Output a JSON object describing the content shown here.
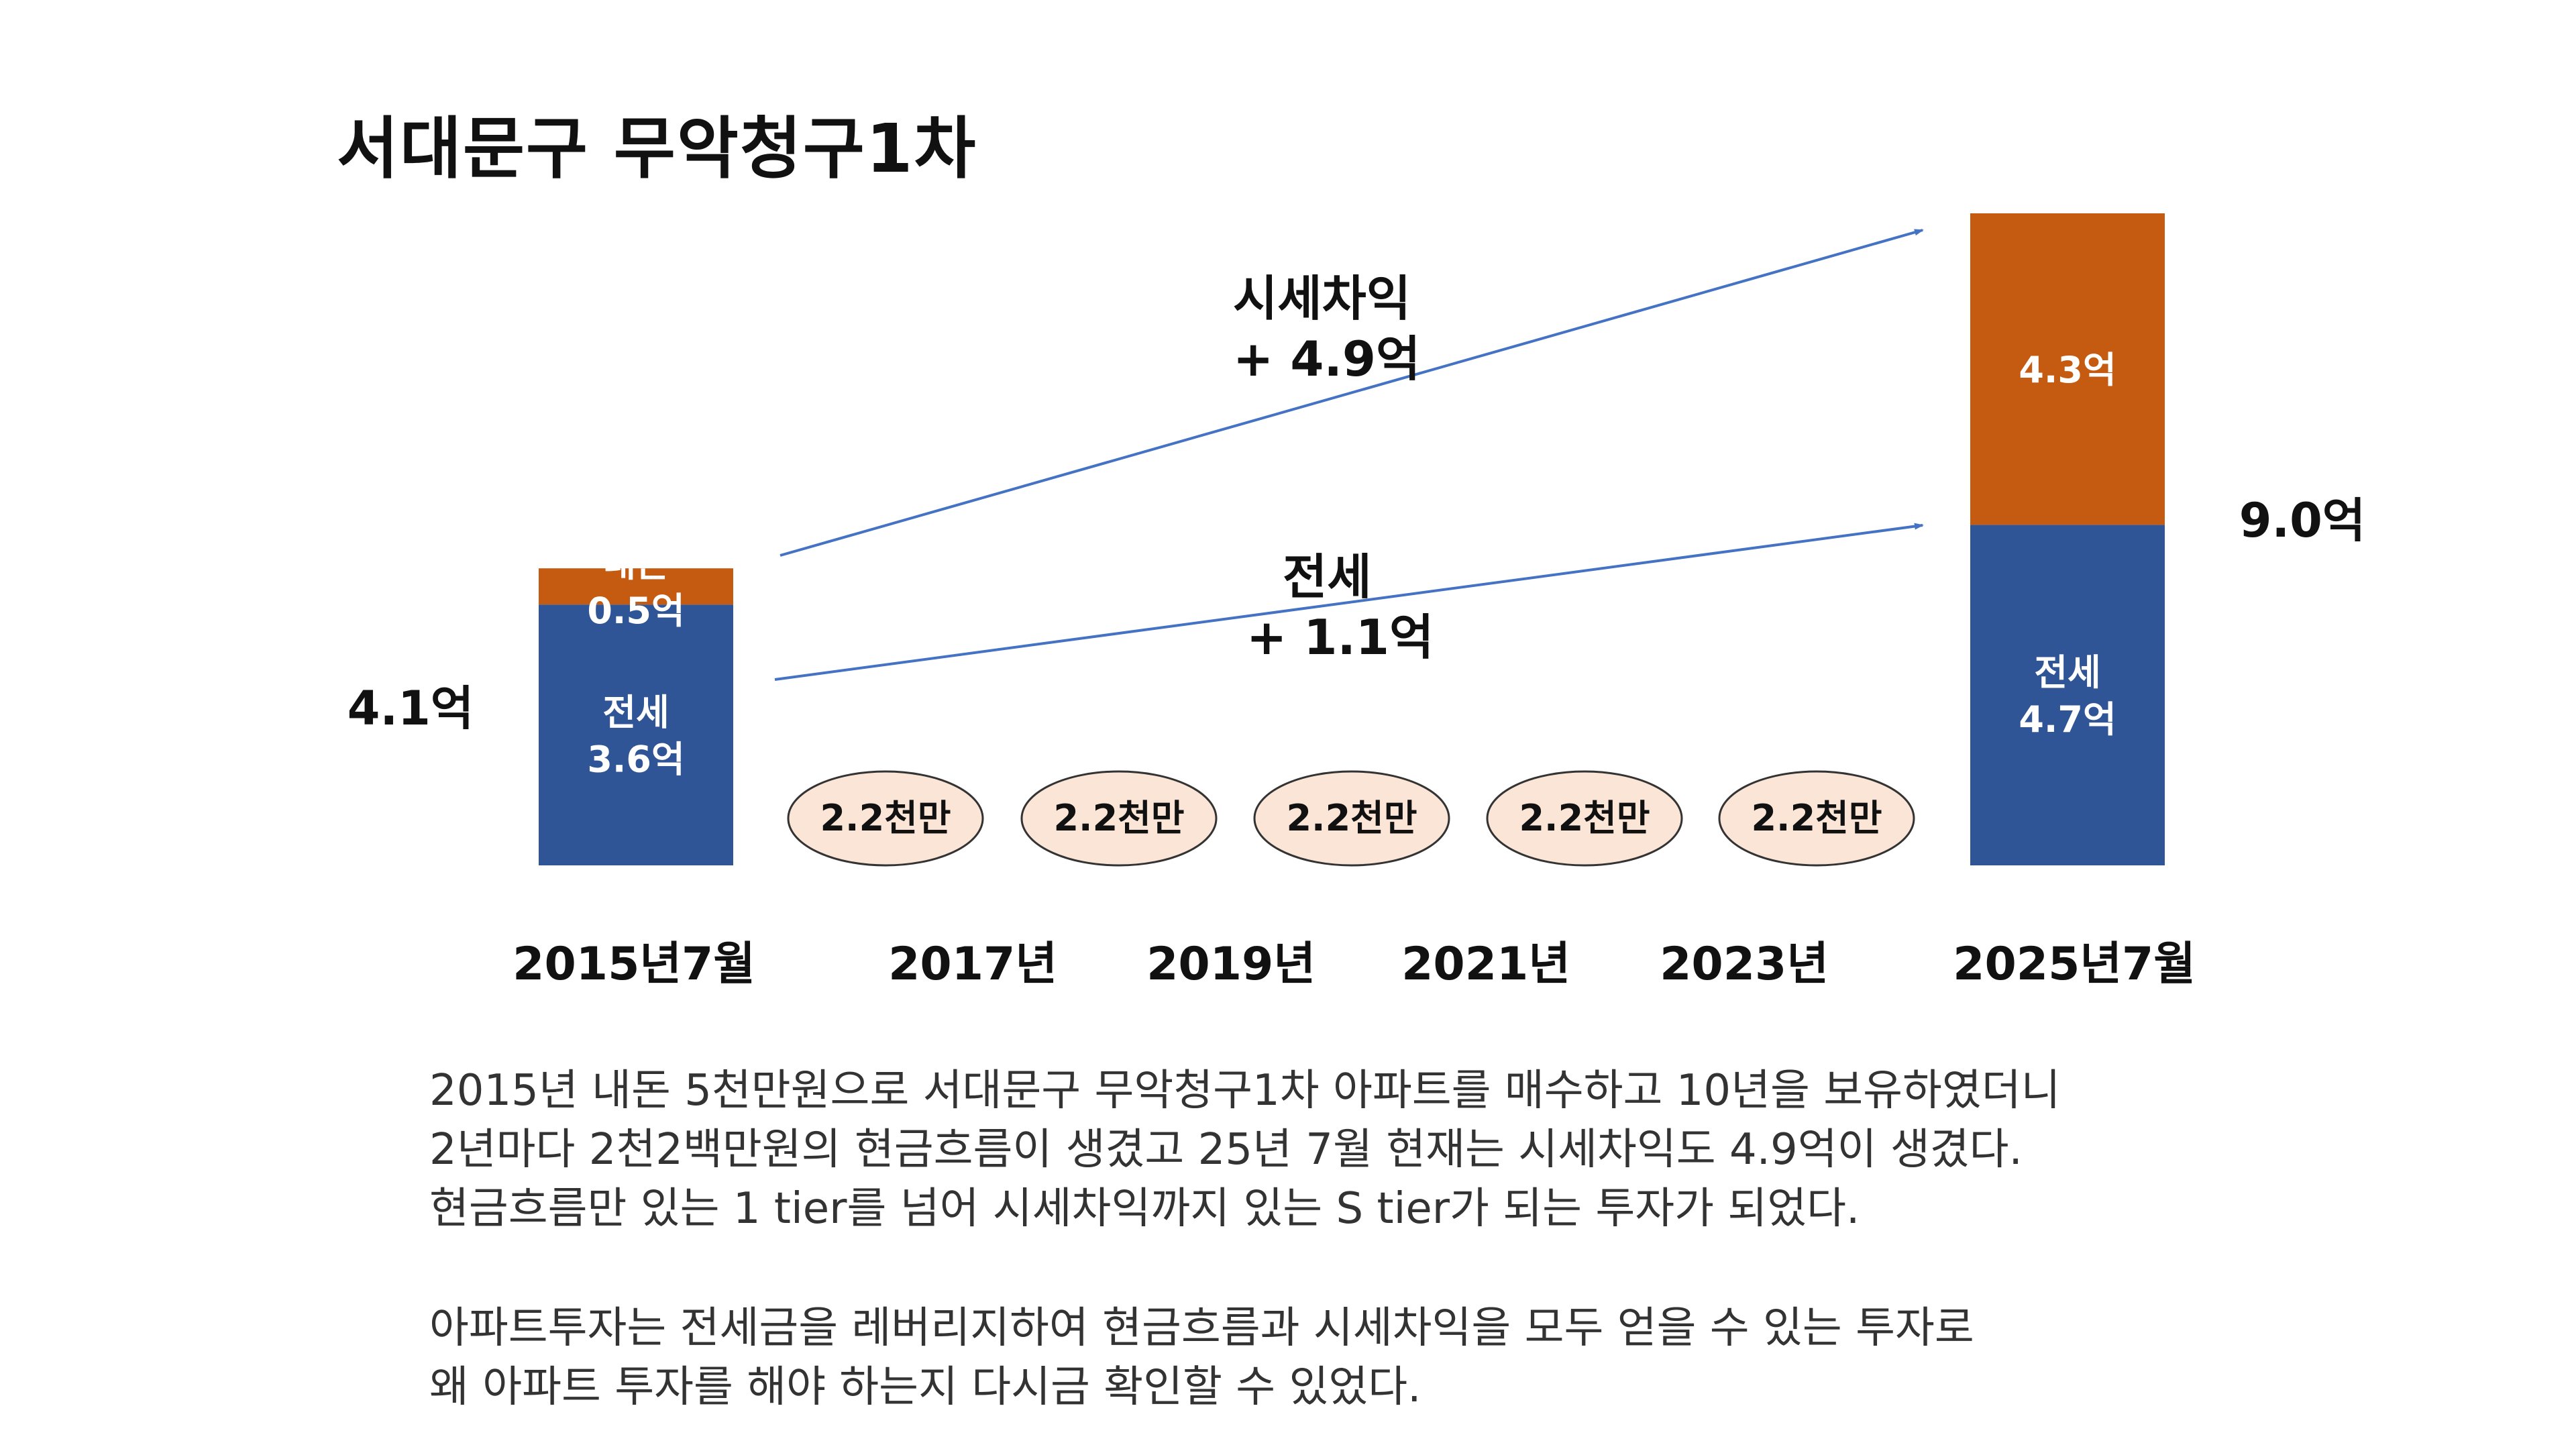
{
  "title": "서대문구 무악청구1차",
  "colors": {
    "jeonse": "#2f5597",
    "equity": "#c55a11",
    "arrow": "#4472c4",
    "pill_fill": "#fbe5d6",
    "pill_stroke": "#333333"
  },
  "chart_data": {
    "type": "bar",
    "title": "서대문구 무악청구1차",
    "categories": [
      "2015년7월",
      "2017년",
      "2019년",
      "2021년",
      "2023년",
      "2025년7월"
    ],
    "unit": "억",
    "bars": [
      {
        "category": "2015년7월",
        "total": 4.1,
        "total_label": "4.1억",
        "segments": [
          {
            "name": "전세",
            "value": 3.6,
            "label": [
              "전세",
              "3.6억"
            ],
            "color": "#2f5597"
          },
          {
            "name": "내돈",
            "value": 0.5,
            "label": [
              "내돈",
              "0.5억"
            ],
            "color": "#c55a11"
          }
        ]
      },
      {
        "category": "2025년7월",
        "total": 9.0,
        "total_label": "9.0억",
        "segments": [
          {
            "name": "전세",
            "value": 4.7,
            "label": [
              "전세",
              "4.7억"
            ],
            "color": "#2f5597"
          },
          {
            "name": "시세차익",
            "value": 4.3,
            "label": [
              "4.3억"
            ],
            "color": "#c55a11"
          }
        ]
      }
    ],
    "cash_flows": [
      {
        "category": "2017년",
        "label": "2.2천만"
      },
      {
        "category": "2019년",
        "label": "2.2천만"
      },
      {
        "category": "2021년",
        "label": "2.2천만"
      },
      {
        "category": "2023년",
        "label": "2.2천만"
      },
      {
        "category": "2023년b",
        "label": "2.2천만"
      }
    ],
    "annotations": [
      {
        "lines": [
          "시세차익",
          "+ 4.9억"
        ]
      },
      {
        "lines": [
          "전세",
          "+ 1.1억"
        ]
      }
    ]
  },
  "paragraphs": [
    [
      "2015년 내돈 5천만원으로 서대문구 무악청구1차 아파트를 매수하고 10년을 보유하였더니",
      "2년마다 2천2백만원의 현금흐름이 생겼고 25년 7월 현재는 시세차익도 4.9억이 생겼다.",
      "현금흐름만 있는 1 tier를 넘어 시세차익까지 있는 S tier가  되는 투자가 되었다."
    ],
    [
      "아파트투자는 전세금을 레버리지하여 현금흐름과 시세차익을 모두 얻을 수 있는 투자로",
      "왜 아파트 투자를 해야 하는지 다시금 확인할 수 있었다."
    ]
  ]
}
